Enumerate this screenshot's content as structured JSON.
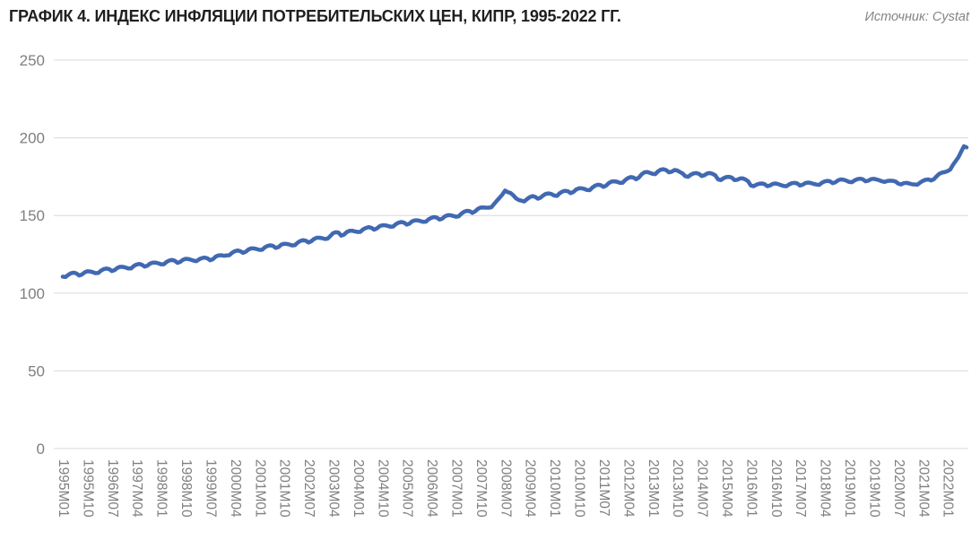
{
  "header": {
    "title": "ГРАФИК 4. ИНДЕКС ИНФЛЯЦИИ ПОТРЕБИТЕЛЬСКИХ ЦЕН, КИПР, 1995-2022 ГГ.",
    "source": "Источник: Cystat"
  },
  "colors": {
    "line": "#4169B2",
    "grid": "#D8D8D8",
    "axis_text": "#7F7F7F",
    "title_text": "#1F1F1F",
    "background": "#FFFFFF"
  },
  "chart_data": {
    "type": "line",
    "title": "ГРАФИК 4. ИНДЕКС ИНФЛЯЦИИ ПОТРЕБИТЕЛЬСКИХ ЦЕН, КИПР, 1995-2022 ГГ.",
    "source": "Источник: Cystat",
    "series_name": "Индекс потребительских цен, Кипр",
    "frequency": "monthly",
    "start": "1995M01",
    "end": "2022M08",
    "legend": "none",
    "grid": "horizontal",
    "ylim": [
      0,
      250
    ],
    "y_ticks": [
      0,
      50,
      100,
      150,
      200,
      250
    ],
    "y_tick_labels": [
      "0",
      "50",
      "100",
      "150",
      "200",
      "250"
    ],
    "x_tick_every_months": 9,
    "x_tick_labels": [
      "1995M01",
      "1995M10",
      "1996M07",
      "1997M04",
      "1998M01",
      "1998M10",
      "1999M07",
      "2000M04",
      "2001M01",
      "2001M10",
      "2002M07",
      "2003M04",
      "2004M01",
      "2004M10",
      "2005M07",
      "2006M04",
      "2007M01",
      "2007M10",
      "2008M07",
      "2009M04",
      "2010M01",
      "2010M10",
      "2011M07",
      "2012M04",
      "2013M01",
      "2013M10",
      "2014M07",
      "2015M04",
      "2016M01",
      "2016M10",
      "2017M07",
      "2018M04",
      "2019M01",
      "2019M10",
      "2020M07",
      "2021M04",
      "2022M01"
    ],
    "values": [
      110.6,
      110.4,
      111.8,
      112.8,
      113.2,
      112.7,
      111.4,
      112.0,
      113.4,
      114.1,
      114.0,
      113.5,
      112.9,
      113.0,
      114.5,
      115.5,
      115.9,
      115.5,
      114.2,
      114.9,
      116.3,
      117.0,
      116.9,
      116.5,
      115.9,
      115.9,
      117.5,
      118.4,
      118.8,
      118.3,
      117.1,
      117.7,
      119.1,
      119.7,
      119.7,
      119.2,
      118.6,
      118.6,
      120.1,
      121.0,
      121.4,
      120.9,
      119.5,
      120.1,
      121.5,
      122.1,
      122.0,
      121.5,
      120.9,
      120.6,
      121.9,
      122.6,
      122.9,
      122.4,
      121.2,
      121.9,
      123.5,
      124.3,
      124.4,
      124.1,
      124.3,
      124.4,
      126.0,
      127.0,
      127.5,
      127.1,
      125.9,
      126.6,
      128.1,
      128.8,
      128.8,
      128.4,
      127.9,
      127.9,
      129.5,
      130.4,
      130.8,
      130.4,
      129.1,
      129.7,
      131.2,
      131.8,
      131.7,
      131.3,
      130.7,
      130.9,
      132.5,
      133.6,
      134.1,
      133.8,
      132.6,
      133.4,
      134.9,
      135.7,
      135.7,
      135.4,
      134.9,
      135.1,
      136.8,
      138.6,
      139.2,
      138.9,
      137.0,
      137.7,
      139.3,
      140.1,
      140.2,
      139.8,
      139.4,
      139.5,
      141.1,
      142.0,
      142.5,
      142.1,
      140.9,
      141.6,
      143.1,
      143.7,
      143.7,
      143.3,
      142.8,
      142.9,
      144.4,
      145.4,
      145.8,
      145.4,
      144.1,
      144.8,
      146.3,
      146.9,
      146.9,
      146.4,
      145.9,
      146.0,
      147.6,
      148.5,
      149.0,
      148.6,
      147.4,
      148.0,
      149.5,
      150.2,
      150.2,
      149.7,
      149.2,
      149.5,
      151.2,
      152.4,
      153.0,
      152.8,
      151.7,
      152.6,
      154.2,
      155.1,
      155.2,
      155.0,
      155.0,
      155.3,
      157.5,
      159.5,
      161.5,
      163.5,
      166.0,
      165.0,
      164.5,
      163.0,
      161.0,
      160.0,
      159.5,
      159.0,
      160.5,
      161.8,
      162.5,
      162.0,
      160.8,
      161.5,
      163.0,
      164.0,
      164.2,
      163.8,
      162.8,
      162.6,
      164.3,
      165.4,
      165.9,
      165.6,
      164.4,
      165.1,
      166.7,
      167.5,
      167.5,
      167.1,
      166.4,
      166.3,
      168.0,
      169.2,
      169.8,
      169.5,
      168.4,
      169.2,
      170.9,
      171.8,
      172.0,
      171.7,
      171.0,
      171.0,
      172.8,
      174.1,
      174.7,
      174.4,
      173.3,
      174.5,
      176.5,
      177.8,
      178.0,
      177.5,
      176.8,
      176.6,
      178.4,
      179.5,
      179.8,
      179.2,
      177.8,
      178.2,
      179.3,
      179.0,
      178.0,
      177.0,
      175.3,
      174.9,
      176.2,
      177.1,
      177.3,
      176.8,
      175.4,
      175.9,
      177.0,
      177.3,
      176.8,
      175.8,
      173.2,
      172.8,
      174.0,
      174.7,
      174.9,
      174.4,
      172.8,
      173.0,
      173.8,
      173.9,
      173.2,
      172.0,
      169.3,
      168.8,
      169.8,
      170.4,
      170.6,
      170.2,
      168.9,
      169.3,
      170.3,
      170.6,
      170.2,
      169.6,
      169.0,
      168.8,
      170.0,
      170.8,
      171.0,
      170.6,
      169.3,
      169.8,
      170.9,
      171.2,
      170.9,
      170.3,
      169.9,
      169.7,
      171.0,
      171.9,
      172.3,
      172.0,
      170.8,
      171.4,
      172.7,
      173.2,
      173.0,
      172.4,
      171.6,
      171.4,
      172.6,
      173.4,
      173.7,
      173.3,
      172.0,
      172.4,
      173.4,
      173.6,
      173.2,
      172.7,
      172.0,
      171.6,
      172.2,
      172.4,
      172.3,
      171.9,
      170.5,
      170.0,
      170.8,
      171.0,
      170.6,
      170.1,
      170.0,
      169.8,
      171.2,
      172.3,
      173.0,
      173.2,
      172.5,
      173.3,
      175.2,
      176.8,
      177.6,
      177.9,
      178.5,
      179.5,
      182.5,
      185.0,
      187.5,
      191.0,
      194.5,
      193.8
    ]
  }
}
